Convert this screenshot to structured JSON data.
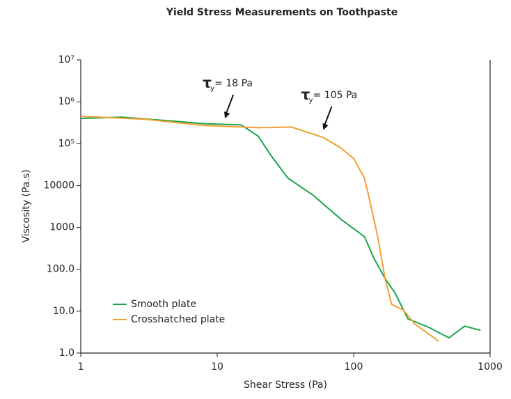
{
  "chart_data": {
    "type": "line",
    "title": "Yield Stress Measurements on Toothpaste",
    "x_label": "Shear Stress (Pa)",
    "y_label": "Viscosity (Pa.s)",
    "xlog": true,
    "ylog": true,
    "xlim": [
      1,
      1000
    ],
    "ylim": [
      1,
      10000000
    ],
    "xticks": [
      1,
      10,
      100,
      1000
    ],
    "yticks": [
      {
        "value": 1,
        "label": "1.0"
      },
      {
        "value": 10,
        "label": "10.0"
      },
      {
        "value": 100,
        "label": "100.0"
      },
      1000,
      10000,
      {
        "value": 100000,
        "label": "10⁵"
      },
      {
        "value": 1000000,
        "label": "10⁶"
      },
      {
        "value": 10000000,
        "label": "10⁷"
      }
    ],
    "legend": "lower-left",
    "series": [
      {
        "name": "Smooth plate",
        "color": "#1ba34b",
        "x": [
          1,
          2,
          5,
          8,
          15,
          20,
          25,
          33,
          50,
          80,
          120,
          140,
          170,
          200,
          250,
          350,
          500,
          650,
          850
        ],
        "values": [
          400000,
          430000,
          340000,
          300000,
          280000,
          150000,
          50000,
          15000,
          6000,
          1600,
          600,
          190,
          60,
          28,
          6.5,
          4.2,
          2.3,
          4.4,
          3.5
        ]
      },
      {
        "name": "Crosshatched plate",
        "color": "#f0a030",
        "x": [
          1,
          3,
          8,
          20,
          35,
          60,
          80,
          100,
          120,
          130,
          150,
          170,
          190,
          230,
          280,
          420
        ],
        "values": [
          450000,
          380000,
          270000,
          240000,
          250000,
          140000,
          80000,
          44000,
          15000,
          5000,
          600,
          60,
          14.5,
          10.8,
          5,
          1.9
        ]
      }
    ],
    "annotations": [
      {
        "symbol": "τ",
        "subscript": "y",
        "text": "= 18 Pa",
        "point": [
          11.4,
          400000
        ]
      },
      {
        "symbol": "τ",
        "subscript": "y",
        "text": "= 105 Pa",
        "point": [
          60,
          210000
        ]
      }
    ]
  }
}
